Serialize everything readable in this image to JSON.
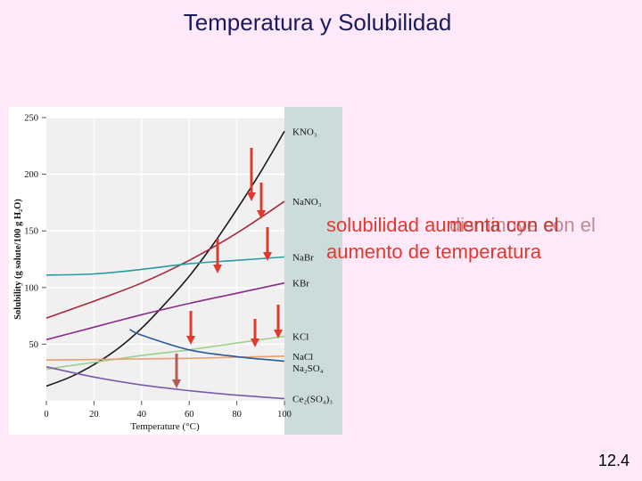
{
  "slide": {
    "title": "Temperatura y Solubilidad",
    "overlay_line1": "solubilidad aumenta con el",
    "overlay_ghost": "disminuye con el",
    "overlay_line2": "aumento de temperatura",
    "number": "12.4"
  },
  "colors": {
    "background": "#fde9f9",
    "title": "#1a1a5e",
    "overlay": "#e03a2e",
    "arrow": "#e03a2e",
    "arrow_dark": "#b55a55"
  },
  "chart_data": {
    "type": "line",
    "xlabel": "Temperature (°C)",
    "ylabel": "Solubility (g solute/100 g H₂O)",
    "xlim": [
      0,
      100
    ],
    "ylim": [
      0,
      250
    ],
    "xticks": [
      0,
      20,
      40,
      60,
      80,
      100
    ],
    "yticks": [
      50,
      100,
      150,
      200,
      250
    ],
    "grid": true,
    "series": [
      {
        "name": "KNO₃",
        "color": "#1a1a1a",
        "x": [
          0,
          10,
          20,
          30,
          40,
          50,
          60,
          70,
          80,
          90,
          100
        ],
        "y": [
          13,
          21,
          32,
          46,
          64,
          86,
          110,
          138,
          169,
          202,
          238
        ]
      },
      {
        "name": "NaNO₃",
        "color": "#a8283a",
        "x": [
          0,
          20,
          40,
          60,
          80,
          100
        ],
        "y": [
          73,
          88,
          104,
          124,
          148,
          176
        ]
      },
      {
        "name": "NaBr",
        "color": "#2a9aa0",
        "x": [
          0,
          20,
          40,
          60,
          80,
          100
        ],
        "y": [
          111,
          112,
          116,
          121,
          124,
          127
        ]
      },
      {
        "name": "KBr",
        "color": "#8a2a8a",
        "x": [
          0,
          20,
          40,
          60,
          80,
          100
        ],
        "y": [
          54,
          65,
          76,
          86,
          95,
          104
        ]
      },
      {
        "name": "KCl",
        "color": "#9ed08a",
        "x": [
          0,
          20,
          40,
          60,
          80,
          100
        ],
        "y": [
          28,
          34,
          40,
          45,
          51,
          57
        ]
      },
      {
        "name": "NaCl",
        "color": "#e8a070",
        "x": [
          0,
          20,
          40,
          60,
          80,
          100
        ],
        "y": [
          36,
          36.5,
          37,
          37.5,
          38.5,
          39.5
        ]
      },
      {
        "name": "Na₂SO₄",
        "color": "#2a5aa0",
        "x": [
          35,
          40,
          60,
          80,
          100
        ],
        "y": [
          63,
          58,
          45,
          39,
          35
        ]
      },
      {
        "name": "Ce₂(SO₄)₃",
        "color": "#7a5aa8",
        "x": [
          0,
          20,
          40,
          60,
          80,
          100
        ],
        "y": [
          30,
          21,
          14,
          9,
          5,
          2
        ]
      }
    ]
  }
}
